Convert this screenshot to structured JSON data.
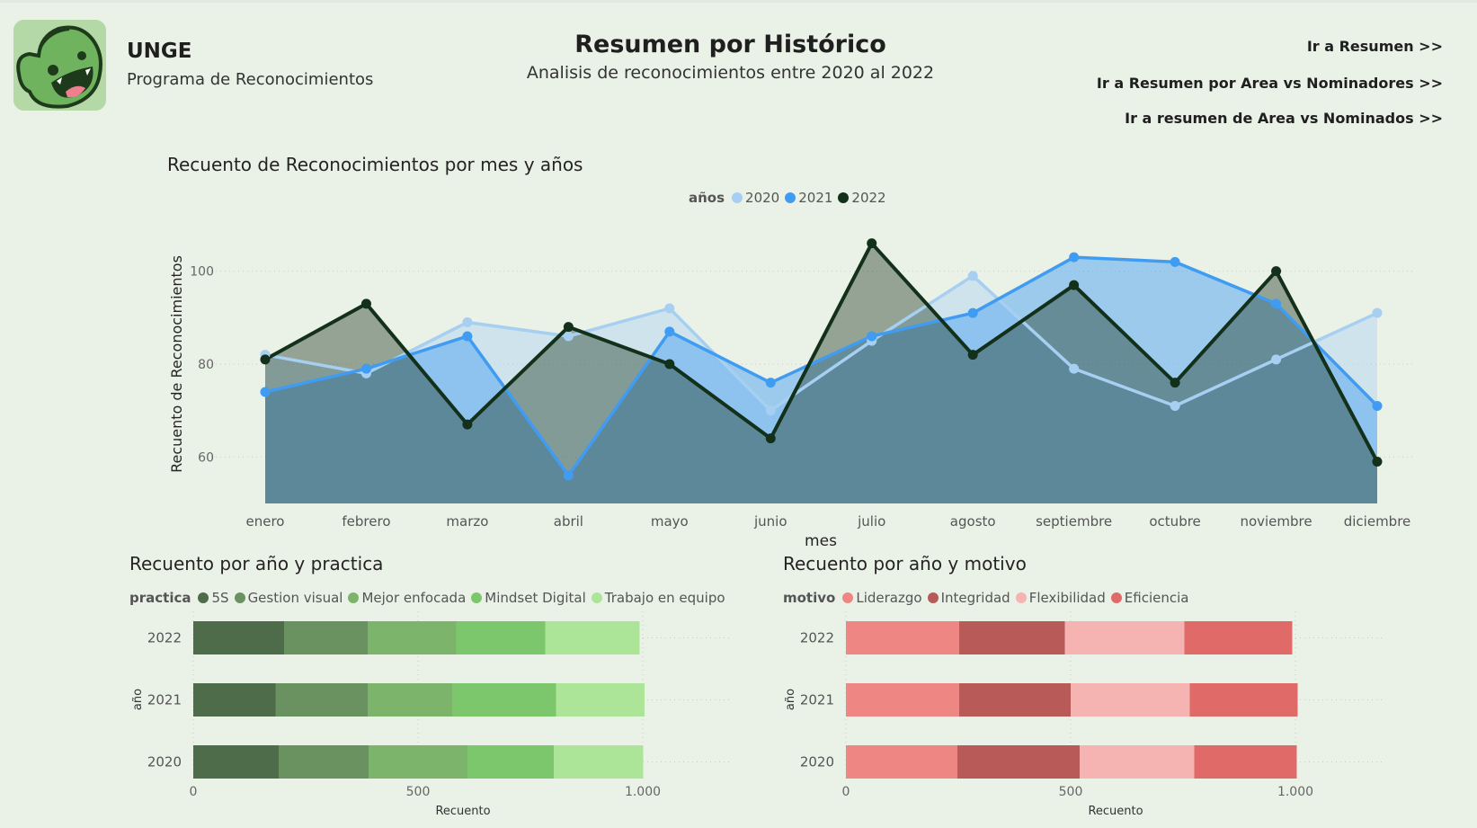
{
  "header": {
    "brand_title": "UNGE",
    "brand_subtitle": "Programa de Reconocimientos",
    "page_title": "Resumen por Histórico",
    "page_subtitle": "Analisis de reconocimientos entre 2020 al 2022",
    "links": [
      "Ir a Resumen >>",
      "Ir a Resumen por Area vs Nominadores >>",
      "Ir a resumen de Area vs Nominados >>"
    ]
  },
  "chart_data": [
    {
      "type": "area",
      "title": "Recuento de Reconocimientos por mes y años",
      "xlabel": "mes",
      "ylabel": "Recuento de Reconocimientos",
      "legend_title": "años",
      "categories": [
        "enero",
        "febrero",
        "marzo",
        "abril",
        "mayo",
        "junio",
        "julio",
        "agosto",
        "septiembre",
        "octubre",
        "noviembre",
        "diciembre"
      ],
      "ylim": [
        50,
        110
      ],
      "yticks": [
        60,
        80,
        100
      ],
      "grid": true,
      "legend_position": "top-center",
      "series": [
        {
          "name": "2020",
          "color": "#a6cff2",
          "values": [
            82,
            78,
            89,
            86,
            92,
            70,
            85,
            99,
            79,
            71,
            81,
            91
          ]
        },
        {
          "name": "2021",
          "color": "#3f9cf2",
          "values": [
            74,
            79,
            86,
            56,
            87,
            76,
            86,
            91,
            103,
            102,
            93,
            71
          ]
        },
        {
          "name": "2022",
          "color": "#13301a",
          "values": [
            81,
            93,
            67,
            88,
            80,
            64,
            106,
            82,
            97,
            76,
            100,
            59
          ]
        }
      ]
    },
    {
      "type": "bar",
      "orientation": "horizontal",
      "stacked": true,
      "title": "Recuento por año y practica",
      "xlabel": "Recuento",
      "ylabel": "año",
      "legend_title": "practica",
      "legend_position": "top-left",
      "categories": [
        "2022",
        "2021",
        "2020"
      ],
      "xlim": [
        0,
        1200
      ],
      "xtick_values": [
        0,
        500,
        1000
      ],
      "xtick_labels": [
        "0",
        "500",
        "1.000"
      ],
      "series": [
        {
          "name": "5S",
          "color": "#4e6b4a",
          "values": [
            202,
            183,
            190
          ]
        },
        {
          "name": "Gestion visual",
          "color": "#6a9260",
          "values": [
            186,
            205,
            200
          ]
        },
        {
          "name": "Mejor enfocada",
          "color": "#7db46c",
          "values": [
            197,
            188,
            220
          ]
        },
        {
          "name": "Mindset Digital",
          "color": "#7cc76c",
          "values": [
            198,
            231,
            192
          ]
        },
        {
          "name": "Trabajo en equipo",
          "color": "#ade598",
          "values": [
            210,
            197,
            199
          ]
        }
      ]
    },
    {
      "type": "bar",
      "orientation": "horizontal",
      "stacked": true,
      "title": "Recuento por año y motivo",
      "xlabel": "Recuento",
      "ylabel": "año",
      "legend_title": "motivo",
      "legend_position": "top-left",
      "categories": [
        "2022",
        "2021",
        "2020"
      ],
      "xlim": [
        0,
        1200
      ],
      "xtick_values": [
        0,
        500,
        1000
      ],
      "xtick_labels": [
        "0",
        "500",
        "1.000"
      ],
      "series": [
        {
          "name": "Liderazgo",
          "color": "#ee8783",
          "values": [
            252,
            252,
            248
          ]
        },
        {
          "name": "Integridad",
          "color": "#b85a58",
          "values": [
            235,
            248,
            272
          ]
        },
        {
          "name": "Flexibilidad",
          "color": "#f5b3b1",
          "values": [
            266,
            265,
            255
          ]
        },
        {
          "name": "Eficiencia",
          "color": "#e06a68",
          "values": [
            240,
            240,
            228
          ]
        }
      ]
    }
  ]
}
